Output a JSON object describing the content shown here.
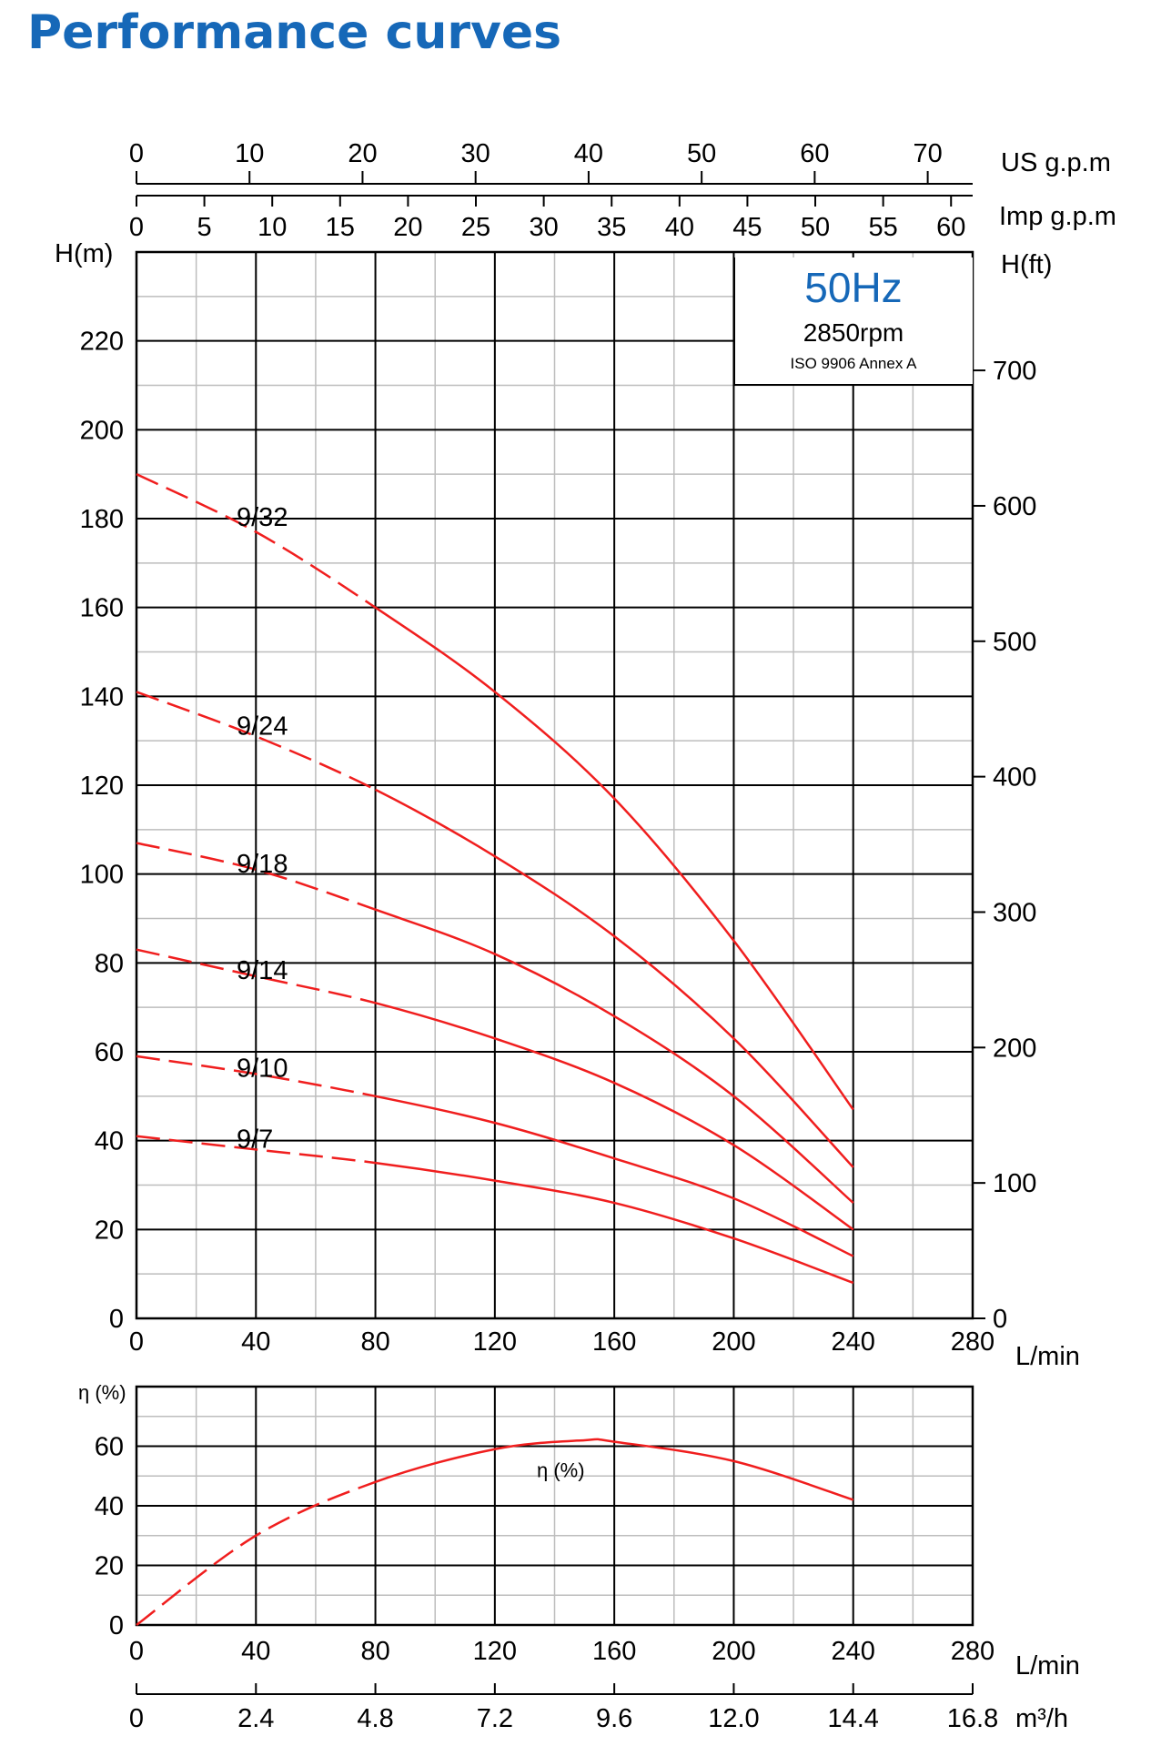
{
  "page": {
    "title": "Performance curves"
  },
  "badge": {
    "freq": "50Hz",
    "rpm": "2850rpm",
    "standard": "ISO 9906 Annex A"
  },
  "axes": {
    "usgpm": {
      "label": "US g.p.m",
      "ticks": [
        0,
        10,
        20,
        30,
        40,
        50,
        60,
        70
      ]
    },
    "impgpm": {
      "label": "Imp g.p.m",
      "ticks": [
        0,
        5,
        10,
        15,
        20,
        25,
        30,
        35,
        40,
        45,
        50,
        55,
        60
      ]
    },
    "flow": {
      "label": "L/min",
      "ticks": [
        0,
        40,
        80,
        120,
        160,
        200,
        240,
        280
      ]
    },
    "head_m": {
      "label": "H(m)",
      "ticks": [
        0,
        20,
        40,
        60,
        80,
        100,
        120,
        140,
        160,
        180,
        200,
        220
      ]
    },
    "head_ft": {
      "label": "H(ft)",
      "ticks": [
        0,
        100,
        200,
        300,
        400,
        500,
        600,
        700
      ]
    },
    "eff": {
      "label": "η (%)",
      "ticks": [
        0,
        20,
        40,
        60
      ]
    },
    "m3h": {
      "label": "m³/h",
      "ticks": [
        "0",
        "2.4",
        "4.8",
        "7.2",
        "9.6",
        "12.0",
        "14.4",
        "16.8"
      ]
    }
  },
  "chart_data": [
    {
      "type": "line",
      "title": "",
      "xlabel": "L/min",
      "ylabel": "H(m)",
      "xlim": [
        0,
        280
      ],
      "ylim": [
        0,
        240
      ],
      "grid": true,
      "series": [
        {
          "name": "9/32",
          "x": [
            0,
            40,
            80,
            120,
            160,
            200,
            240
          ],
          "y": [
            190,
            177,
            160,
            141,
            117,
            85,
            47
          ]
        },
        {
          "name": "9/24",
          "x": [
            0,
            40,
            80,
            120,
            160,
            200,
            240
          ],
          "y": [
            141,
            131,
            119,
            104,
            86,
            63,
            34
          ]
        },
        {
          "name": "9/18",
          "x": [
            0,
            40,
            80,
            120,
            160,
            200,
            240
          ],
          "y": [
            107,
            101,
            92,
            82,
            68,
            50,
            26
          ]
        },
        {
          "name": "9/14",
          "x": [
            0,
            40,
            80,
            120,
            160,
            200,
            240
          ],
          "y": [
            83,
            77,
            71,
            63,
            53,
            39,
            20
          ]
        },
        {
          "name": "9/10",
          "x": [
            0,
            40,
            80,
            120,
            160,
            200,
            240
          ],
          "y": [
            59,
            55,
            50,
            44,
            36,
            27,
            14
          ]
        },
        {
          "name": "9/7",
          "x": [
            0,
            40,
            80,
            120,
            160,
            200,
            240
          ],
          "y": [
            41,
            38,
            35,
            31,
            26,
            18,
            8
          ]
        }
      ]
    },
    {
      "type": "line",
      "title": "",
      "xlabel": "L/min",
      "ylabel": "η (%)",
      "xlim": [
        0,
        280
      ],
      "ylim": [
        0,
        80
      ],
      "grid": true,
      "series": [
        {
          "name": "η (%)",
          "x": [
            0,
            40,
            80,
            120,
            150,
            160,
            200,
            240
          ],
          "y": [
            0,
            30,
            48,
            59,
            62,
            61.5,
            55,
            42
          ]
        }
      ]
    }
  ]
}
